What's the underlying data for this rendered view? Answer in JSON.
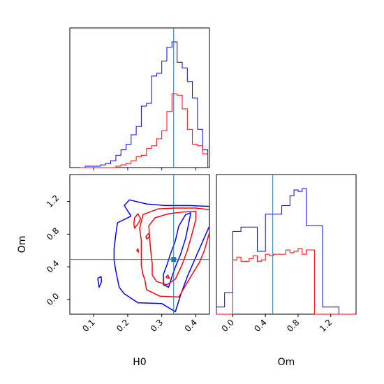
{
  "chart_data": {
    "type": "corner",
    "parameters": [
      "H0",
      "Om"
    ],
    "truth": {
      "H0": 0.335,
      "Om": 0.49
    },
    "colors": {
      "blue": "#0000ff",
      "red": "#ff0000",
      "truth": "#1f77b4"
    },
    "axes": {
      "H0": {
        "xlabel": "H0",
        "range": [
          0.03,
          0.44
        ],
        "ticks": [
          0.1,
          0.2,
          0.3,
          0.4
        ],
        "tick_labels": [
          "0.1",
          "0.2",
          "0.3",
          "0.4"
        ]
      },
      "Om": {
        "xlabel": "Om",
        "ylabel": "Om",
        "range_2d": [
          -0.18,
          1.53
        ],
        "range_1d": [
          -0.2,
          1.51
        ],
        "ticks": [
          0.0,
          0.4,
          0.8,
          1.2
        ],
        "tick_labels": [
          "0.0",
          "0.4",
          "0.8",
          "1.2"
        ]
      }
    },
    "hist_H0": {
      "edges": [
        0.06,
        0.075,
        0.09,
        0.105,
        0.12,
        0.135,
        0.15,
        0.165,
        0.18,
        0.195,
        0.21,
        0.225,
        0.24,
        0.255,
        0.27,
        0.285,
        0.3,
        0.315,
        0.33,
        0.345,
        0.36,
        0.375,
        0.39,
        0.405,
        0.42,
        0.435
      ],
      "series": [
        {
          "color": "blue",
          "values": [
            0,
            1,
            1,
            1,
            2,
            3,
            5,
            9,
            13,
            17,
            24,
            30,
            45,
            47,
            67,
            69,
            78,
            88,
            92,
            77,
            73,
            63,
            51,
            28,
            13
          ]
        },
        {
          "color": "red",
          "values": [
            0,
            0,
            0,
            0,
            0,
            0,
            0,
            1,
            2,
            3,
            5,
            8,
            9,
            14,
            16,
            21,
            27,
            41,
            54,
            53,
            43,
            28,
            17,
            16,
            10
          ]
        }
      ]
    },
    "hist_Om": {
      "edges": [
        -0.2,
        -0.1,
        0.0,
        0.05,
        0.1,
        0.15,
        0.2,
        0.25,
        0.3,
        0.35,
        0.4,
        0.45,
        0.5,
        0.55,
        0.6,
        0.65,
        0.7,
        0.75,
        0.8,
        0.85,
        0.9,
        1.0,
        1.1,
        1.2,
        1.3,
        1.5
      ],
      "series": [
        {
          "color": "blue",
          "values": [
            5,
            15,
            58,
            58,
            61,
            61,
            61,
            61,
            44,
            44,
            70,
            70,
            70,
            70,
            76,
            76,
            83,
            87,
            86,
            88,
            62,
            62,
            5,
            5,
            0
          ]
        },
        {
          "color": "red",
          "values": [
            0,
            0,
            38,
            40,
            37,
            37,
            39,
            41,
            37,
            38,
            42,
            41,
            42,
            42,
            42,
            45,
            43,
            44,
            46,
            42,
            45,
            0,
            0,
            0,
            0
          ]
        }
      ]
    },
    "contours": [
      {
        "color": "blue",
        "points": [
          [
            0.21,
            1.02
          ],
          [
            0.19,
            1.15
          ],
          [
            0.205,
            1.22
          ],
          [
            0.255,
            1.17
          ],
          [
            0.31,
            1.15
          ],
          [
            0.38,
            1.15
          ],
          [
            0.44,
            1.14
          ],
          [
            0.44,
            0.9
          ],
          [
            0.4,
            0.52
          ],
          [
            0.375,
            0.28
          ],
          [
            0.355,
            0.05
          ],
          [
            0.34,
            -0.15
          ],
          [
            0.3,
            -0.05
          ],
          [
            0.23,
            -0.04
          ],
          [
            0.19,
            0.07
          ],
          [
            0.175,
            0.15
          ],
          [
            0.165,
            0.35
          ],
          [
            0.16,
            0.48
          ],
          [
            0.16,
            0.62
          ],
          [
            0.165,
            0.8
          ],
          [
            0.17,
            0.94
          ],
          [
            0.21,
            1.02
          ]
        ]
      },
      {
        "color": "blue",
        "points": [
          [
            0.305,
            0.31
          ],
          [
            0.305,
            0.18
          ],
          [
            0.32,
            0.15
          ],
          [
            0.33,
            0.28
          ],
          [
            0.342,
            0.42
          ],
          [
            0.355,
            0.55
          ],
          [
            0.37,
            0.75
          ],
          [
            0.38,
            0.95
          ],
          [
            0.385,
            1.06
          ],
          [
            0.37,
            1.04
          ],
          [
            0.35,
            0.9
          ],
          [
            0.34,
            0.72
          ],
          [
            0.325,
            0.55
          ],
          [
            0.315,
            0.42
          ],
          [
            0.305,
            0.31
          ]
        ]
      },
      {
        "color": "blue",
        "points": [
          [
            0.112,
            0.26
          ],
          [
            0.122,
            0.28
          ],
          [
            0.123,
            0.22
          ],
          [
            0.116,
            0.15
          ],
          [
            0.112,
            0.26
          ]
        ]
      },
      {
        "color": "red",
        "points": [
          [
            0.245,
            0.3
          ],
          [
            0.25,
            0.25
          ],
          [
            0.255,
            0.12
          ],
          [
            0.295,
            0.04
          ],
          [
            0.35,
            0.03
          ],
          [
            0.385,
            0.28
          ],
          [
            0.41,
            0.45
          ],
          [
            0.425,
            0.6
          ],
          [
            0.44,
            0.82
          ],
          [
            0.44,
            1.1
          ],
          [
            0.4,
            1.12
          ],
          [
            0.34,
            1.12
          ],
          [
            0.29,
            1.11
          ],
          [
            0.245,
            1.04
          ],
          [
            0.235,
            0.87
          ],
          [
            0.24,
            0.72
          ],
          [
            0.24,
            0.55
          ],
          [
            0.24,
            0.42
          ],
          [
            0.245,
            0.3
          ]
        ]
      },
      {
        "color": "red",
        "points": [
          [
            0.268,
            0.58
          ],
          [
            0.272,
            0.44
          ],
          [
            0.272,
            0.3
          ],
          [
            0.285,
            0.22
          ],
          [
            0.315,
            0.18
          ],
          [
            0.34,
            0.25
          ],
          [
            0.36,
            0.43
          ],
          [
            0.375,
            0.6
          ],
          [
            0.39,
            0.82
          ],
          [
            0.4,
            0.98
          ],
          [
            0.4,
            1.08
          ],
          [
            0.36,
            1.07
          ],
          [
            0.32,
            1.05
          ],
          [
            0.28,
            1.0
          ],
          [
            0.262,
            0.9
          ],
          [
            0.265,
            0.72
          ],
          [
            0.268,
            0.58
          ]
        ]
      },
      {
        "color": "red",
        "points": [
          [
            0.22,
            0.87
          ],
          [
            0.232,
            0.94
          ],
          [
            0.238,
            0.99
          ],
          [
            0.23,
            1.05
          ],
          [
            0.22,
            1.0
          ],
          [
            0.218,
            0.93
          ],
          [
            0.22,
            0.87
          ]
        ]
      },
      {
        "color": "red",
        "points": [
          [
            0.226,
            0.6
          ],
          [
            0.23,
            0.62
          ],
          [
            0.232,
            0.58
          ],
          [
            0.226,
            0.6
          ]
        ]
      },
      {
        "color": "red",
        "points": [
          [
            0.253,
            0.77
          ],
          [
            0.262,
            0.81
          ],
          [
            0.264,
            0.77
          ],
          [
            0.256,
            0.74
          ],
          [
            0.253,
            0.77
          ]
        ]
      },
      {
        "color": "red",
        "points": [
          [
            0.312,
            0.27
          ],
          [
            0.318,
            0.3
          ],
          [
            0.322,
            0.26
          ],
          [
            0.312,
            0.27
          ]
        ]
      }
    ]
  }
}
